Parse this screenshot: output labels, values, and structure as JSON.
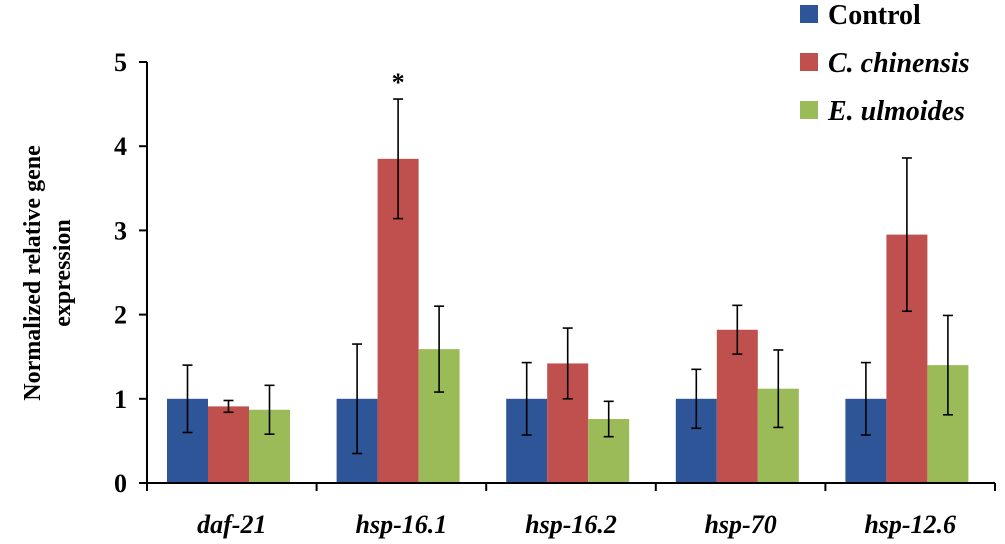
{
  "chart_data": {
    "type": "bar",
    "title": "",
    "xlabel": "",
    "ylabel": "Normalized relative gene expression",
    "ylabel_lines": [
      "Normalized relative gene",
      "expression"
    ],
    "ylim": [
      0,
      5
    ],
    "yticks": [
      0,
      1,
      2,
      3,
      4,
      5
    ],
    "grid": false,
    "legend_position": "top-right",
    "categories": [
      "daf-21",
      "hsp-16.1",
      "hsp-16.2",
      "hsp-70",
      "hsp-12.6"
    ],
    "series": [
      {
        "name": "Control",
        "italic": false,
        "color": "#2E5597",
        "values": [
          1.0,
          1.0,
          1.0,
          1.0,
          1.0
        ],
        "errors": [
          0.4,
          0.65,
          0.43,
          0.35,
          0.43
        ]
      },
      {
        "name": "C. chinensis",
        "italic": true,
        "color": "#C0504D",
        "values": [
          0.91,
          3.85,
          1.42,
          1.82,
          2.95
        ],
        "errors": [
          0.07,
          0.71,
          0.42,
          0.29,
          0.91
        ]
      },
      {
        "name": "E. ulmoides",
        "italic": true,
        "color": "#9BBB59",
        "values": [
          0.87,
          1.59,
          0.76,
          1.12,
          1.4
        ],
        "errors": [
          0.29,
          0.51,
          0.21,
          0.46,
          0.59
        ]
      }
    ],
    "annotations": [
      {
        "text": "*",
        "category": "hsp-16.1",
        "series": "C. chinensis"
      }
    ]
  }
}
